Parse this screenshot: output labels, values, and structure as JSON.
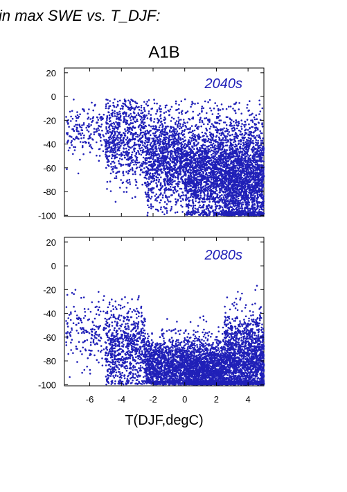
{
  "figure": {
    "title": "in max SWE vs. T_DJF:",
    "scenario": "A1B",
    "xlabel": "T(DJF,degC)",
    "point_color": "#2020b8"
  },
  "chart_data": [
    {
      "type": "scatter",
      "panel_label": "2040s",
      "xlim": [
        -7.6,
        5.0
      ],
      "ylim": [
        -101,
        24
      ],
      "x_ticks": [
        -6,
        -4,
        -2,
        0,
        2,
        4
      ],
      "y_ticks": [
        20,
        0,
        -20,
        -40,
        -60,
        -80,
        -100
      ],
      "y_tick_labels": [
        "20",
        "0",
        "-20",
        "-40",
        "-60",
        "-80",
        "-100"
      ],
      "x_tick_labels_shown": false,
      "approx_point_count": 6000,
      "color": "#2020b8",
      "distribution": [
        {
          "x_range": [
            -7.5,
            -5
          ],
          "y_mean": -28,
          "y_sd": 12,
          "share": 0.03
        },
        {
          "x_range": [
            -5,
            -2.5
          ],
          "y_mean": -35,
          "y_sd": 18,
          "share": 0.12
        },
        {
          "x_range": [
            -2.5,
            0
          ],
          "y_mean": -52,
          "y_sd": 20,
          "share": 0.2
        },
        {
          "x_range": [
            0,
            2.5
          ],
          "y_mean": -62,
          "y_sd": 22,
          "share": 0.28
        },
        {
          "x_range": [
            2.5,
            5
          ],
          "y_mean": -70,
          "y_sd": 24,
          "share": 0.37
        }
      ]
    },
    {
      "type": "scatter",
      "panel_label": "2080s",
      "xlim": [
        -7.6,
        5.0
      ],
      "ylim": [
        -101,
        24
      ],
      "x_ticks": [
        -6,
        -4,
        -2,
        0,
        2,
        4
      ],
      "x_tick_labels": [
        "-6",
        "-4",
        "-2",
        "0",
        "2",
        "4"
      ],
      "y_ticks": [
        20,
        0,
        -20,
        -40,
        -60,
        -80,
        -100
      ],
      "y_tick_labels": [
        "20",
        "0",
        "-20",
        "-40",
        "-60",
        "-80",
        "-100"
      ],
      "approx_point_count": 6000,
      "color": "#2020b8",
      "distribution": [
        {
          "x_range": [
            -7.5,
            -5
          ],
          "y_mean": -55,
          "y_sd": 15,
          "share": 0.03
        },
        {
          "x_range": [
            -5,
            -2.5
          ],
          "y_mean": -70,
          "y_sd": 18,
          "share": 0.13
        },
        {
          "x_range": [
            -2.5,
            0
          ],
          "y_mean": -85,
          "y_sd": 12,
          "share": 0.22
        },
        {
          "x_range": [
            0,
            2.5
          ],
          "y_mean": -88,
          "y_sd": 13,
          "share": 0.3
        },
        {
          "x_range": [
            2.5,
            5
          ],
          "y_mean": -82,
          "y_sd": 20,
          "share": 0.32
        }
      ]
    }
  ]
}
